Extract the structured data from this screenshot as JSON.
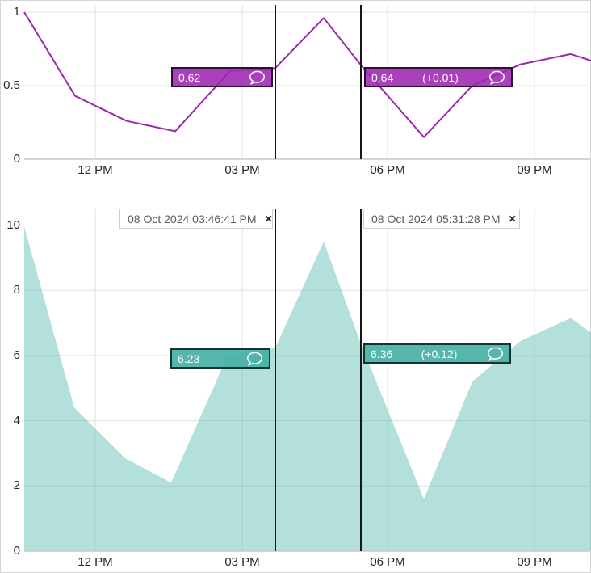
{
  "panel": {
    "description": "stacked time-series charts with two annotation cursors"
  },
  "icons": {
    "close": "✕",
    "comment": "speech-bubble"
  },
  "cursors": [
    {
      "timestamp": "08 Oct 2024 03:46:41 PM"
    },
    {
      "timestamp": "08 Oct 2024 05:31:28 PM"
    }
  ],
  "badges": {
    "top_cursor1_value": "0.62",
    "top_cursor2_value": "0.64",
    "top_cursor2_delta": "(+0.01)",
    "bottom_cursor1_value": "6.23",
    "bottom_cursor2_value": "6.36",
    "bottom_cursor2_delta": "(+0.12)"
  },
  "colors": {
    "purple_line": "#9C27B0",
    "teal": "#4DB6AC",
    "teal_area_fill": "rgba(77,182,172,0.42)",
    "cursor_line": "#161616",
    "grid": "#e2e2e2",
    "axis": "#c9c9c9"
  },
  "chart_data": [
    {
      "type": "line",
      "title": "",
      "xlabel": "",
      "ylabel": "",
      "color": "#9C27B0",
      "ylim": [
        0,
        1
      ],
      "yticks": [
        "1",
        "0.5",
        "0"
      ],
      "ytick_values": [
        1,
        0.5,
        0
      ],
      "xticks": [
        "12 PM",
        "03 PM",
        "06 PM",
        "09 PM"
      ],
      "grid": true,
      "legend": "none",
      "points": [
        {
          "t": "10:35 AM",
          "v": 1.0,
          "x": 30
        },
        {
          "t": "11:35 AM",
          "v": 0.43,
          "x": 93
        },
        {
          "t": "12:40 PM",
          "v": 0.26,
          "x": 157
        },
        {
          "t": "1:35 PM",
          "v": 0.19,
          "x": 217
        },
        {
          "t": "2:45 PM",
          "v": 0.6,
          "x": 285
        },
        {
          "t": "3:46 PM",
          "v": 0.62,
          "x": 341
        },
        {
          "t": "4:40 PM",
          "v": 0.96,
          "x": 401
        },
        {
          "t": "5:31 PM",
          "v": 0.64,
          "x": 447
        },
        {
          "t": "6:45 PM",
          "v": 0.15,
          "x": 525
        },
        {
          "t": "7:45 PM",
          "v": 0.5,
          "x": 585
        },
        {
          "t": "8:40 PM",
          "v": 0.645,
          "x": 645
        },
        {
          "t": "9:40 PM",
          "v": 0.715,
          "x": 707
        },
        {
          "t": "10:05 PM",
          "v": 0.67,
          "x": 732
        }
      ],
      "annotations": [
        {
          "time": "08 Oct 2024 03:46:41 PM",
          "value": 0.62
        },
        {
          "time": "08 Oct 2024 05:31:28 PM",
          "value": 0.64,
          "delta": "+0.01"
        }
      ]
    },
    {
      "type": "area",
      "title": "",
      "xlabel": "",
      "ylabel": "",
      "color": "#4DB6AC",
      "fill": "rgba(77,182,172,0.42)",
      "ylim": [
        0,
        10
      ],
      "yticks": [
        "10",
        "8",
        "6",
        "4",
        "2",
        "0"
      ],
      "ytick_values": [
        10,
        8,
        6,
        4,
        2,
        0
      ],
      "xticks": [
        "12 PM",
        "03 PM",
        "06 PM",
        "09 PM"
      ],
      "grid": true,
      "legend": "none",
      "points": [
        {
          "t": "10:35 AM",
          "v": 9.95,
          "x": 30
        },
        {
          "t": "11:35 AM",
          "v": 4.4,
          "x": 92
        },
        {
          "t": "12:40 PM",
          "v": 2.85,
          "x": 155
        },
        {
          "t": "1:35 PM",
          "v": 2.1,
          "x": 212
        },
        {
          "t": "2:45 PM",
          "v": 6.0,
          "x": 282
        },
        {
          "t": "3:46 PM",
          "v": 6.23,
          "x": 341
        },
        {
          "t": "4:40 PM",
          "v": 9.5,
          "x": 401
        },
        {
          "t": "5:31 PM",
          "v": 6.36,
          "x": 447
        },
        {
          "t": "6:45 PM",
          "v": 1.6,
          "x": 525
        },
        {
          "t": "7:45 PM",
          "v": 5.2,
          "x": 585
        },
        {
          "t": "8:40 PM",
          "v": 6.45,
          "x": 645
        },
        {
          "t": "9:40 PM",
          "v": 7.15,
          "x": 707
        },
        {
          "t": "10:05 PM",
          "v": 6.7,
          "x": 732
        }
      ],
      "annotations": [
        {
          "time": "08 Oct 2024 03:46:41 PM",
          "value": 6.23
        },
        {
          "time": "08 Oct 2024 05:31:28 PM",
          "value": 6.36,
          "delta": "+0.12"
        }
      ]
    }
  ]
}
